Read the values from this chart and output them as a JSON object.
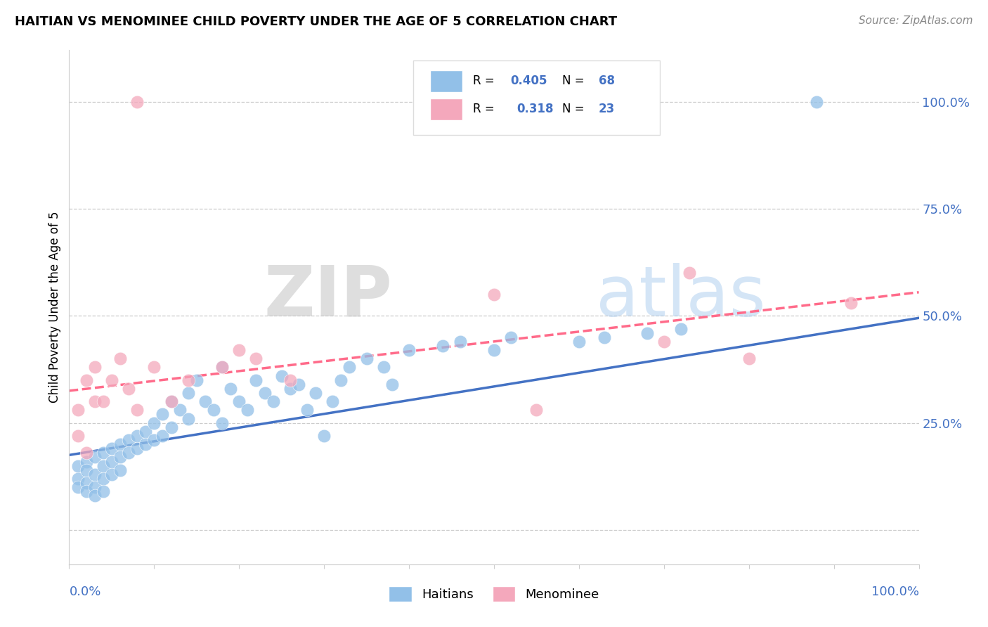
{
  "title": "HAITIAN VS MENOMINEE CHILD POVERTY UNDER THE AGE OF 5 CORRELATION CHART",
  "source": "Source: ZipAtlas.com",
  "ylabel": "Child Poverty Under the Age of 5",
  "xlim": [
    0.0,
    1.0
  ],
  "ylim": [
    -0.08,
    1.12
  ],
  "yticks": [
    0.0,
    0.25,
    0.5,
    0.75,
    1.0
  ],
  "ytick_labels": [
    "",
    "25.0%",
    "50.0%",
    "75.0%",
    "100.0%"
  ],
  "watermark_zip": "ZIP",
  "watermark_atlas": "atlas",
  "legend_r_haitian": "R = 0.405",
  "legend_n_haitian": "N = 68",
  "legend_r_menominee": "R =  0.318",
  "legend_n_menominee": "N = 23",
  "haitian_color": "#92C0E8",
  "menominee_color": "#F4A8BC",
  "haitian_line_color": "#4472C4",
  "menominee_line_color": "#FF6B8A",
  "tick_color": "#4472C4",
  "background_color": "#FFFFFF",
  "haitians_scatter_x": [
    0.01,
    0.01,
    0.01,
    0.02,
    0.02,
    0.02,
    0.02,
    0.03,
    0.03,
    0.03,
    0.03,
    0.04,
    0.04,
    0.04,
    0.04,
    0.05,
    0.05,
    0.05,
    0.06,
    0.06,
    0.06,
    0.07,
    0.07,
    0.08,
    0.08,
    0.09,
    0.09,
    0.1,
    0.1,
    0.11,
    0.11,
    0.12,
    0.12,
    0.13,
    0.14,
    0.14,
    0.15,
    0.16,
    0.17,
    0.18,
    0.18,
    0.19,
    0.2,
    0.21,
    0.22,
    0.23,
    0.24,
    0.25,
    0.26,
    0.27,
    0.28,
    0.29,
    0.3,
    0.31,
    0.32,
    0.33,
    0.35,
    0.37,
    0.38,
    0.4,
    0.44,
    0.46,
    0.5,
    0.52,
    0.6,
    0.63,
    0.68,
    0.72
  ],
  "haitians_scatter_y": [
    0.15,
    0.12,
    0.1,
    0.16,
    0.14,
    0.11,
    0.09,
    0.17,
    0.13,
    0.1,
    0.08,
    0.18,
    0.15,
    0.12,
    0.09,
    0.19,
    0.16,
    0.13,
    0.2,
    0.17,
    0.14,
    0.21,
    0.18,
    0.22,
    0.19,
    0.23,
    0.2,
    0.25,
    0.21,
    0.27,
    0.22,
    0.3,
    0.24,
    0.28,
    0.32,
    0.26,
    0.35,
    0.3,
    0.28,
    0.38,
    0.25,
    0.33,
    0.3,
    0.28,
    0.35,
    0.32,
    0.3,
    0.36,
    0.33,
    0.34,
    0.28,
    0.32,
    0.22,
    0.3,
    0.35,
    0.38,
    0.4,
    0.38,
    0.34,
    0.42,
    0.43,
    0.44,
    0.42,
    0.45,
    0.44,
    0.45,
    0.46,
    0.47
  ],
  "menominee_scatter_x": [
    0.01,
    0.01,
    0.02,
    0.02,
    0.03,
    0.03,
    0.04,
    0.05,
    0.06,
    0.07,
    0.08,
    0.1,
    0.12,
    0.14,
    0.18,
    0.2,
    0.22,
    0.26,
    0.5,
    0.55,
    0.7,
    0.8,
    0.92
  ],
  "menominee_scatter_y": [
    0.28,
    0.22,
    0.35,
    0.18,
    0.38,
    0.3,
    0.3,
    0.35,
    0.4,
    0.33,
    0.28,
    0.38,
    0.3,
    0.35,
    0.38,
    0.42,
    0.4,
    0.35,
    0.55,
    0.28,
    0.44,
    0.4,
    0.53
  ],
  "haitian_trendline_x": [
    0.0,
    1.0
  ],
  "haitian_trendline_y": [
    0.175,
    0.495
  ],
  "menominee_trendline_x": [
    0.0,
    1.0
  ],
  "menominee_trendline_y": [
    0.325,
    0.555
  ]
}
